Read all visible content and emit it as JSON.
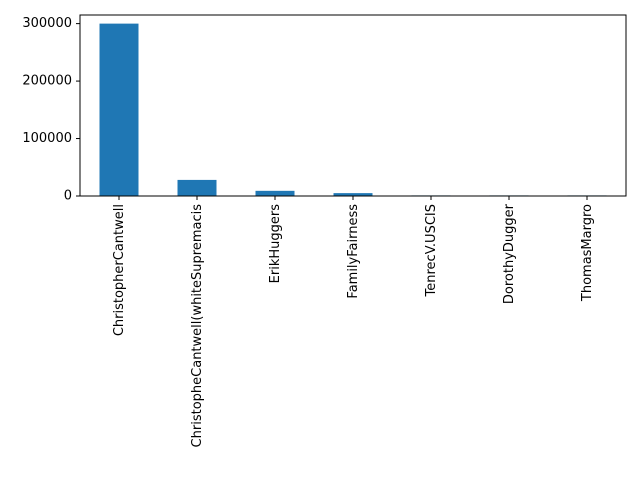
{
  "chart_data": {
    "type": "bar",
    "title": "",
    "xlabel": "",
    "ylabel": "",
    "categories": [
      "ChristopherCantwell",
      "ChristopheCantwell(whiteSupremacis",
      "ErikHuggers",
      "FamilyFairness",
      "TenrecV.USCIS",
      "DorothyDugger",
      "ThomasMargro"
    ],
    "values": [
      300000,
      28000,
      9000,
      5000,
      1000,
      1000,
      1000
    ],
    "ylim": [
      0,
      315000
    ],
    "yticks": [
      0,
      100000,
      200000,
      300000
    ],
    "ytick_labels": [
      "0",
      "100000",
      "200000",
      "300000"
    ],
    "bar_color": "#1f77b4",
    "grid": false,
    "legend": "none"
  }
}
